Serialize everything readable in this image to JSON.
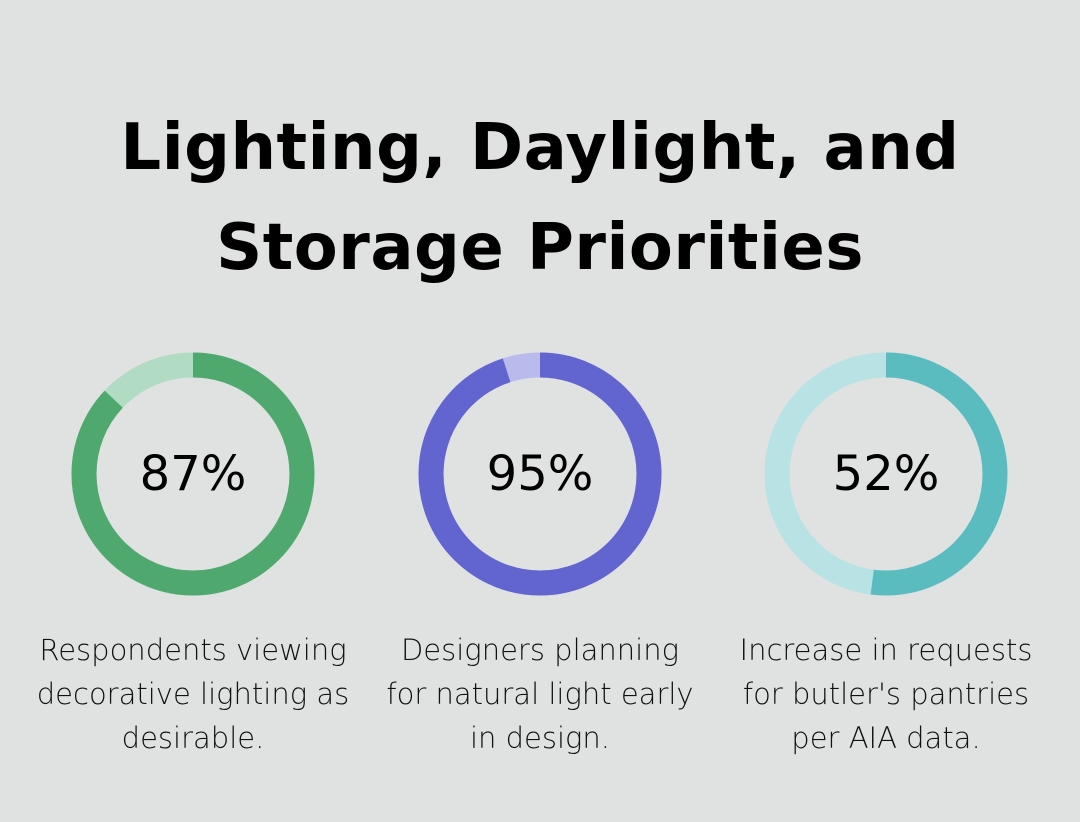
{
  "title_lines": [
    "Lighting, Daylight, and",
    "Storage Priorities"
  ],
  "chart_data": [
    {
      "type": "pie",
      "variant": "donut",
      "value": 87,
      "label": "87%",
      "caption": "Respondents viewing decorative lighting as desirable.",
      "caption_lines": [
        "Respondents viewing",
        "decorative lighting as",
        "desirable."
      ],
      "color": "#4fa86d",
      "track_color": "#b1dcc3"
    },
    {
      "type": "pie",
      "variant": "donut",
      "value": 95,
      "label": "95%",
      "caption": "Designers planning for natural light early in design.",
      "caption_lines": [
        "Designers planning",
        "for natural light early",
        "in design."
      ],
      "color": "#6264d0",
      "track_color": "#b9bbec"
    },
    {
      "type": "pie",
      "variant": "donut",
      "value": 52,
      "label": "52%",
      "caption": "Increase in requests for butler's pantries per AIA data.",
      "caption_lines": [
        "Increase in requests",
        "for butler's pantries",
        "per AIA data."
      ],
      "color": "#5bbcc0",
      "track_color": "#b8e2e4"
    }
  ]
}
